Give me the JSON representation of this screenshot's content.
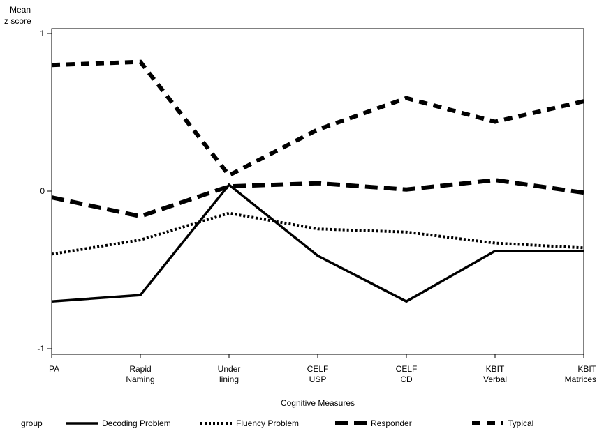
{
  "chart_data": {
    "type": "line",
    "ylabel_lines": [
      "Mean",
      "z score"
    ],
    "xlabel": "Cognitive Measures",
    "categories": [
      [
        "PA"
      ],
      [
        "Rapid",
        "Naming"
      ],
      [
        "Under",
        "lining"
      ],
      [
        "CELF",
        "USP"
      ],
      [
        "CELF",
        "CD"
      ],
      [
        "KBIT",
        "Verbal"
      ],
      [
        "KBIT",
        "Matrices"
      ]
    ],
    "ylim": [
      -1,
      1
    ],
    "yticks": [
      -1,
      0,
      1
    ],
    "grid": false,
    "legend": {
      "title": "group",
      "placement": "bottom"
    },
    "series": [
      {
        "name": "Decoding Problem",
        "style": "solid",
        "values": [
          -0.7,
          -0.66,
          0.04,
          -0.41,
          -0.7,
          -0.38,
          -0.38
        ]
      },
      {
        "name": "Fluency Problem",
        "style": "dotted",
        "values": [
          -0.4,
          -0.31,
          -0.14,
          -0.24,
          -0.26,
          -0.33,
          -0.36
        ]
      },
      {
        "name": "Responder",
        "style": "dashed",
        "values": [
          -0.04,
          -0.16,
          0.03,
          0.05,
          0.01,
          0.07,
          -0.01
        ]
      },
      {
        "name": "Typical",
        "style": "longdash",
        "values": [
          0.8,
          0.82,
          0.1,
          0.39,
          0.59,
          0.44,
          0.57
        ]
      }
    ]
  }
}
